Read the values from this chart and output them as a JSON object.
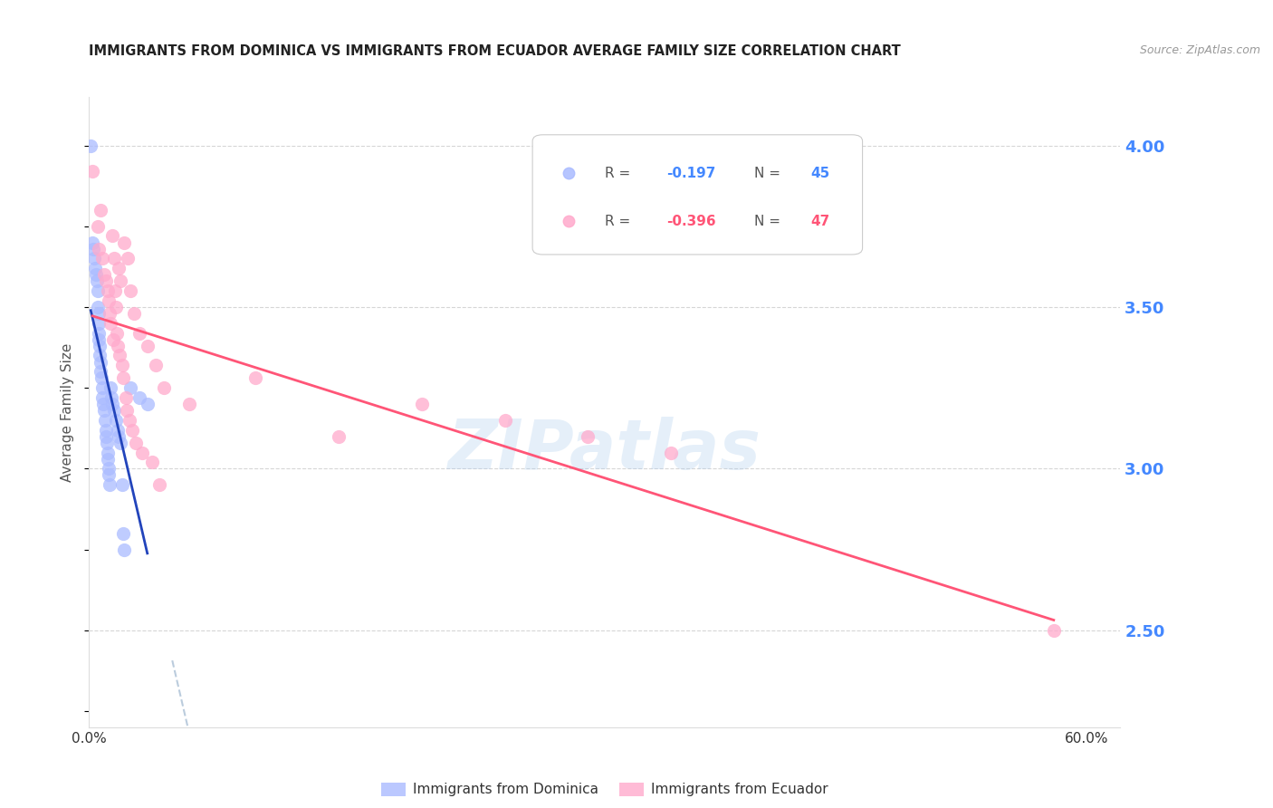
{
  "title": "IMMIGRANTS FROM DOMINICA VS IMMIGRANTS FROM ECUADOR AVERAGE FAMILY SIZE CORRELATION CHART",
  "source": "Source: ZipAtlas.com",
  "ylabel": "Average Family Size",
  "right_yticks": [
    2.5,
    3.0,
    3.5,
    4.0
  ],
  "right_ytick_color": "#4488ff",
  "background_color": "#ffffff",
  "grid_color": "#cccccc",
  "watermark": "ZIPatlas",
  "legend_R_dominica": "-0.197",
  "legend_N_dominica": "45",
  "legend_R_ecuador": "-0.396",
  "legend_N_ecuador": "47",
  "dominica_color": "#aabbff",
  "ecuador_color": "#ffaacc",
  "dominica_line_color": "#2244bb",
  "ecuador_line_color": "#ff5577",
  "dashed_line_color": "#bbccdd",
  "dominica_points": [
    [
      0.1,
      4.0
    ],
    [
      0.2,
      3.7
    ],
    [
      0.25,
      3.68
    ],
    [
      0.3,
      3.65
    ],
    [
      0.35,
      3.62
    ],
    [
      0.4,
      3.6
    ],
    [
      0.45,
      3.58
    ],
    [
      0.5,
      3.55
    ],
    [
      0.5,
      3.5
    ],
    [
      0.55,
      3.48
    ],
    [
      0.55,
      3.45
    ],
    [
      0.6,
      3.42
    ],
    [
      0.6,
      3.4
    ],
    [
      0.65,
      3.38
    ],
    [
      0.65,
      3.35
    ],
    [
      0.7,
      3.33
    ],
    [
      0.7,
      3.3
    ],
    [
      0.75,
      3.28
    ],
    [
      0.8,
      3.25
    ],
    [
      0.8,
      3.22
    ],
    [
      0.85,
      3.2
    ],
    [
      0.9,
      3.18
    ],
    [
      0.95,
      3.15
    ],
    [
      1.0,
      3.12
    ],
    [
      1.0,
      3.1
    ],
    [
      1.05,
      3.08
    ],
    [
      1.1,
      3.05
    ],
    [
      1.1,
      3.03
    ],
    [
      1.15,
      3.0
    ],
    [
      1.2,
      2.98
    ],
    [
      1.25,
      2.95
    ],
    [
      1.3,
      3.25
    ],
    [
      1.35,
      3.22
    ],
    [
      1.4,
      3.2
    ],
    [
      1.5,
      3.18
    ],
    [
      1.6,
      3.15
    ],
    [
      1.7,
      3.12
    ],
    [
      1.8,
      3.1
    ],
    [
      1.9,
      3.08
    ],
    [
      2.0,
      2.95
    ],
    [
      2.05,
      2.8
    ],
    [
      2.1,
      2.75
    ],
    [
      2.5,
      3.25
    ],
    [
      3.0,
      3.22
    ],
    [
      3.5,
      3.2
    ]
  ],
  "ecuador_points": [
    [
      0.2,
      3.92
    ],
    [
      0.5,
      3.75
    ],
    [
      0.6,
      3.68
    ],
    [
      0.7,
      3.8
    ],
    [
      0.8,
      3.65
    ],
    [
      0.9,
      3.6
    ],
    [
      1.0,
      3.58
    ],
    [
      1.1,
      3.55
    ],
    [
      1.2,
      3.52
    ],
    [
      1.25,
      3.48
    ],
    [
      1.3,
      3.45
    ],
    [
      1.4,
      3.72
    ],
    [
      1.45,
      3.4
    ],
    [
      1.5,
      3.65
    ],
    [
      1.55,
      3.55
    ],
    [
      1.6,
      3.5
    ],
    [
      1.65,
      3.42
    ],
    [
      1.7,
      3.38
    ],
    [
      1.8,
      3.62
    ],
    [
      1.85,
      3.35
    ],
    [
      1.9,
      3.58
    ],
    [
      2.0,
      3.32
    ],
    [
      2.05,
      3.28
    ],
    [
      2.1,
      3.7
    ],
    [
      2.2,
      3.22
    ],
    [
      2.25,
      3.18
    ],
    [
      2.3,
      3.65
    ],
    [
      2.4,
      3.15
    ],
    [
      2.5,
      3.55
    ],
    [
      2.6,
      3.12
    ],
    [
      2.7,
      3.48
    ],
    [
      2.8,
      3.08
    ],
    [
      3.0,
      3.42
    ],
    [
      3.2,
      3.05
    ],
    [
      3.5,
      3.38
    ],
    [
      3.8,
      3.02
    ],
    [
      4.0,
      3.32
    ],
    [
      4.2,
      2.95
    ],
    [
      4.5,
      3.25
    ],
    [
      6.0,
      3.2
    ],
    [
      10.0,
      3.28
    ],
    [
      15.0,
      3.1
    ],
    [
      20.0,
      3.2
    ],
    [
      25.0,
      3.15
    ],
    [
      30.0,
      3.1
    ],
    [
      35.0,
      3.05
    ],
    [
      58.0,
      2.5
    ]
  ],
  "xlim": [
    0,
    62
  ],
  "ylim": [
    2.2,
    4.15
  ],
  "figsize": [
    14.06,
    8.92
  ],
  "dpi": 100
}
